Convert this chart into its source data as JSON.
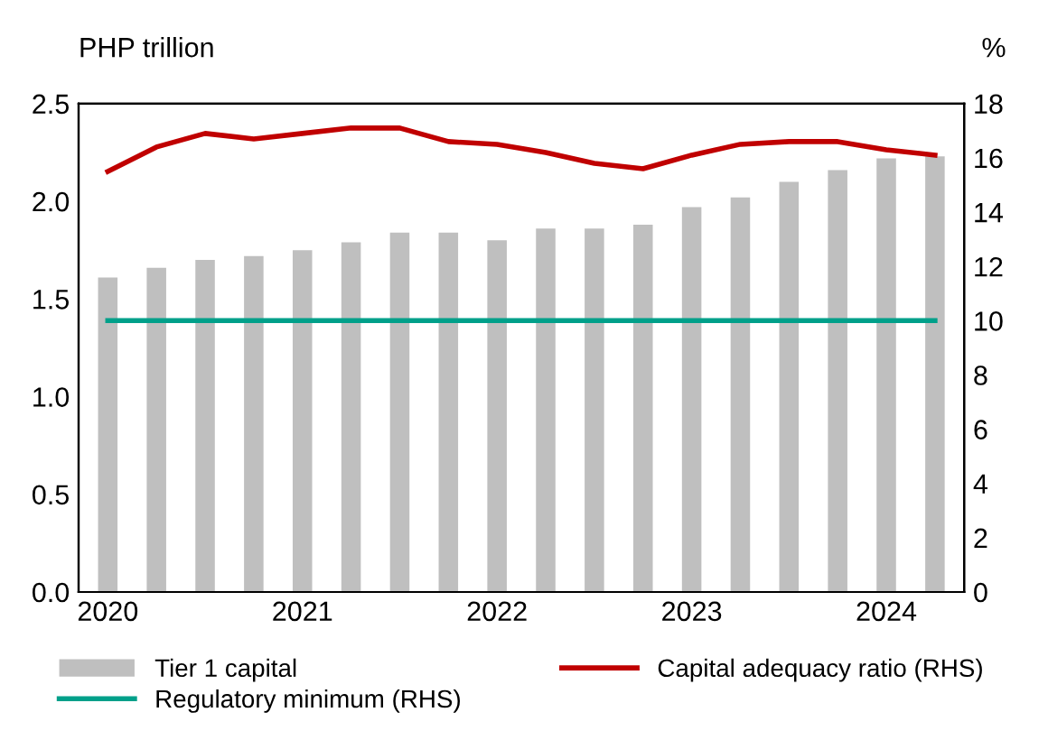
{
  "chart_data": {
    "type": "bar",
    "ylabel": "PHP trillion",
    "y2label": "%",
    "categories": [
      "2020",
      null,
      null,
      null,
      "2021",
      null,
      null,
      null,
      "2022",
      null,
      null,
      null,
      "2023",
      null,
      null,
      null,
      "2024",
      null
    ],
    "series": [
      {
        "name": "Tier 1 capital",
        "color": "#bfbfbf",
        "values": [
          1.61,
          1.66,
          1.7,
          1.72,
          1.75,
          1.79,
          1.84,
          1.84,
          1.8,
          1.86,
          1.86,
          1.88,
          1.97,
          2.02,
          2.1,
          2.16,
          2.22,
          2.23
        ]
      },
      {
        "name": "Capital adequacy ratio (RHS)",
        "type": "line",
        "axis": "y2",
        "color": "#c00000",
        "values": [
          15.5,
          16.4,
          16.9,
          16.7,
          16.9,
          17.1,
          17.1,
          16.6,
          16.5,
          16.2,
          15.8,
          15.6,
          16.1,
          16.5,
          16.6,
          16.6,
          16.3,
          16.1
        ]
      },
      {
        "name": "Regulatory minimum (RHS)",
        "type": "line",
        "axis": "y2",
        "color": "#00a08a",
        "values": [
          10,
          10,
          10,
          10,
          10,
          10,
          10,
          10,
          10,
          10,
          10,
          10,
          10,
          10,
          10,
          10,
          10,
          10
        ]
      }
    ],
    "ylim": [
      0,
      2.5
    ],
    "yticks": [
      {
        "value": 0,
        "label": "0.0"
      },
      {
        "value": 0.5,
        "label": "0.5"
      },
      {
        "value": 1,
        "label": "1.0"
      },
      {
        "value": 1.5,
        "label": "1.5"
      },
      {
        "value": 2,
        "label": "2.0"
      },
      {
        "value": 2.5,
        "label": "2.5"
      }
    ],
    "y2lim": [
      0,
      18
    ],
    "y2ticks": [
      0,
      2,
      4,
      6,
      8,
      10,
      12,
      14,
      16,
      18
    ],
    "legend": "bottom",
    "grid": false
  }
}
